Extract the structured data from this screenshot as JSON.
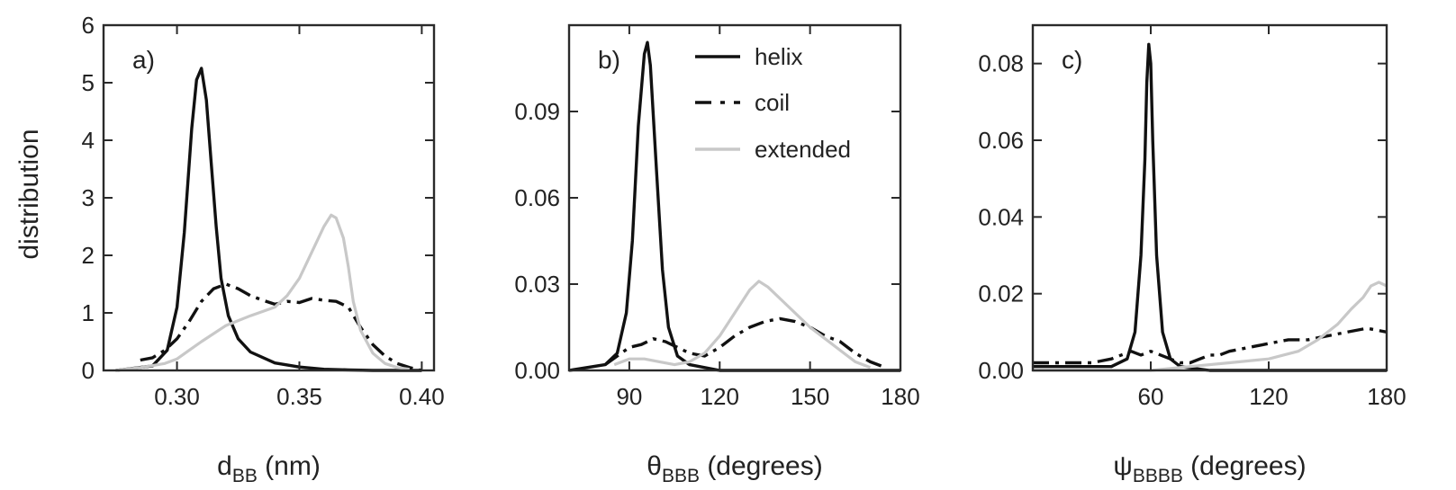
{
  "chart_data": [
    {
      "type": "line",
      "panel_label": "a)",
      "xlabel": "d",
      "xlabel_sub": "BB",
      "xlabel_unit": " (nm)",
      "ylabel": "distribution",
      "xlim": [
        0.27,
        0.405
      ],
      "ylim": [
        0,
        6
      ],
      "xticks": [
        0.3,
        0.35,
        0.4
      ],
      "xtick_labels": [
        "0.30",
        "0.35",
        "0.40"
      ],
      "yticks": [
        0,
        1,
        2,
        3,
        4,
        5,
        6
      ],
      "ytick_labels": [
        "0",
        "1",
        "2",
        "3",
        "4",
        "5",
        "6"
      ],
      "series": [
        {
          "name": "helix",
          "style": "solid",
          "color": "#111111",
          "x": [
            0.275,
            0.29,
            0.296,
            0.3,
            0.303,
            0.306,
            0.308,
            0.31,
            0.312,
            0.314,
            0.316,
            0.318,
            0.321,
            0.325,
            0.33,
            0.34,
            0.35,
            0.36,
            0.37,
            0.38,
            0.4
          ],
          "y": [
            0.0,
            0.08,
            0.35,
            1.1,
            2.4,
            4.2,
            5.05,
            5.25,
            4.7,
            3.6,
            2.5,
            1.6,
            0.95,
            0.55,
            0.32,
            0.13,
            0.06,
            0.02,
            0.01,
            0.0,
            0.0
          ]
        },
        {
          "name": "coil",
          "style": "dashed",
          "color": "#111111",
          "x": [
            0.285,
            0.29,
            0.295,
            0.3,
            0.305,
            0.31,
            0.315,
            0.32,
            0.325,
            0.33,
            0.335,
            0.34,
            0.345,
            0.35,
            0.355,
            0.36,
            0.365,
            0.37,
            0.375,
            0.38,
            0.385,
            0.39,
            0.395,
            0.4
          ],
          "y": [
            0.18,
            0.22,
            0.35,
            0.55,
            0.85,
            1.2,
            1.42,
            1.5,
            1.42,
            1.3,
            1.22,
            1.15,
            1.2,
            1.18,
            1.25,
            1.22,
            1.2,
            1.1,
            0.75,
            0.45,
            0.25,
            0.12,
            0.05,
            0.0
          ]
        },
        {
          "name": "extended",
          "style": "solid",
          "color": "#c8c8c8",
          "x": [
            0.275,
            0.285,
            0.295,
            0.3,
            0.305,
            0.31,
            0.32,
            0.33,
            0.34,
            0.345,
            0.35,
            0.355,
            0.36,
            0.363,
            0.365,
            0.368,
            0.37,
            0.372,
            0.375,
            0.38,
            0.385,
            0.39,
            0.395
          ],
          "y": [
            0.0,
            0.05,
            0.12,
            0.2,
            0.35,
            0.5,
            0.78,
            0.95,
            1.1,
            1.3,
            1.6,
            2.05,
            2.5,
            2.7,
            2.65,
            2.3,
            1.8,
            1.2,
            0.7,
            0.3,
            0.12,
            0.05,
            0.02
          ]
        }
      ]
    },
    {
      "type": "line",
      "panel_label": "b)",
      "xlabel": "θ",
      "xlabel_sub": "BBB",
      "xlabel_unit": " (degrees)",
      "xlim": [
        70,
        180
      ],
      "ylim": [
        0,
        0.12
      ],
      "xticks": [
        90,
        120,
        150,
        180
      ],
      "xtick_labels": [
        "90",
        "120",
        "150",
        "180"
      ],
      "yticks": [
        0,
        0.03,
        0.06,
        0.09
      ],
      "ytick_labels": [
        "0.00",
        "0.03",
        "0.06",
        "0.09"
      ],
      "legend": {
        "entries": [
          "helix",
          "coil",
          "extended"
        ],
        "placement": "top-right"
      },
      "series": [
        {
          "name": "helix",
          "style": "solid",
          "color": "#111111",
          "x": [
            70,
            82,
            86,
            89,
            91,
            93,
            95,
            96,
            97,
            99,
            101,
            103,
            106,
            110,
            120,
            140,
            180
          ],
          "y": [
            0.0,
            0.002,
            0.006,
            0.02,
            0.045,
            0.085,
            0.11,
            0.114,
            0.106,
            0.07,
            0.035,
            0.015,
            0.005,
            0.002,
            0.0,
            0.0,
            0.0
          ]
        },
        {
          "name": "coil",
          "style": "dashed",
          "color": "#111111",
          "x": [
            82,
            86,
            90,
            94,
            98,
            102,
            106,
            110,
            115,
            120,
            125,
            130,
            135,
            140,
            145,
            150,
            155,
            160,
            165,
            170,
            175
          ],
          "y": [
            0.002,
            0.005,
            0.008,
            0.009,
            0.011,
            0.01,
            0.008,
            0.006,
            0.005,
            0.008,
            0.012,
            0.015,
            0.017,
            0.018,
            0.017,
            0.015,
            0.012,
            0.01,
            0.006,
            0.003,
            0.001
          ]
        },
        {
          "name": "extended",
          "style": "solid",
          "color": "#c8c8c8",
          "x": [
            85,
            90,
            95,
            100,
            105,
            110,
            115,
            120,
            125,
            130,
            133,
            136,
            140,
            145,
            150,
            155,
            160,
            165,
            170
          ],
          "y": [
            0.002,
            0.004,
            0.004,
            0.003,
            0.002,
            0.003,
            0.006,
            0.012,
            0.02,
            0.028,
            0.031,
            0.029,
            0.025,
            0.02,
            0.015,
            0.011,
            0.007,
            0.003,
            0.001
          ]
        }
      ]
    },
    {
      "type": "line",
      "panel_label": "c)",
      "xlabel": "ψ",
      "xlabel_sub": "BBBB",
      "xlabel_unit": " (degrees)",
      "xlim": [
        0,
        180
      ],
      "ylim": [
        0,
        0.09
      ],
      "xticks": [
        60,
        120,
        180
      ],
      "xtick_labels": [
        "60",
        "120",
        "180"
      ],
      "yticks": [
        0,
        0.02,
        0.04,
        0.06,
        0.08
      ],
      "ytick_labels": [
        "0.00",
        "0.02",
        "0.04",
        "0.06",
        "0.08"
      ],
      "series": [
        {
          "name": "helix",
          "style": "solid",
          "color": "#111111",
          "x": [
            0,
            40,
            48,
            52,
            55,
            57,
            58,
            59,
            60,
            61,
            63,
            66,
            70,
            75,
            90,
            180
          ],
          "y": [
            0.001,
            0.001,
            0.003,
            0.01,
            0.03,
            0.055,
            0.075,
            0.085,
            0.08,
            0.06,
            0.03,
            0.01,
            0.003,
            0.001,
            0.0,
            0.0
          ]
        },
        {
          "name": "coil",
          "style": "dashed",
          "color": "#111111",
          "x": [
            0,
            20,
            30,
            40,
            45,
            50,
            55,
            60,
            65,
            70,
            75,
            80,
            85,
            90,
            95,
            100,
            110,
            120,
            130,
            140,
            150,
            160,
            170,
            180
          ],
          "y": [
            0.002,
            0.002,
            0.002,
            0.003,
            0.004,
            0.005,
            0.004,
            0.005,
            0.004,
            0.003,
            0.002,
            0.002,
            0.003,
            0.004,
            0.004,
            0.005,
            0.006,
            0.007,
            0.008,
            0.008,
            0.009,
            0.01,
            0.011,
            0.01
          ]
        },
        {
          "name": "extended",
          "style": "solid",
          "color": "#c8c8c8",
          "x": [
            0,
            40,
            60,
            80,
            100,
            120,
            135,
            145,
            155,
            162,
            168,
            172,
            176,
            180
          ],
          "y": [
            0.0,
            0.0,
            0.0,
            0.001,
            0.002,
            0.003,
            0.005,
            0.008,
            0.012,
            0.016,
            0.019,
            0.022,
            0.023,
            0.022
          ]
        }
      ]
    }
  ]
}
